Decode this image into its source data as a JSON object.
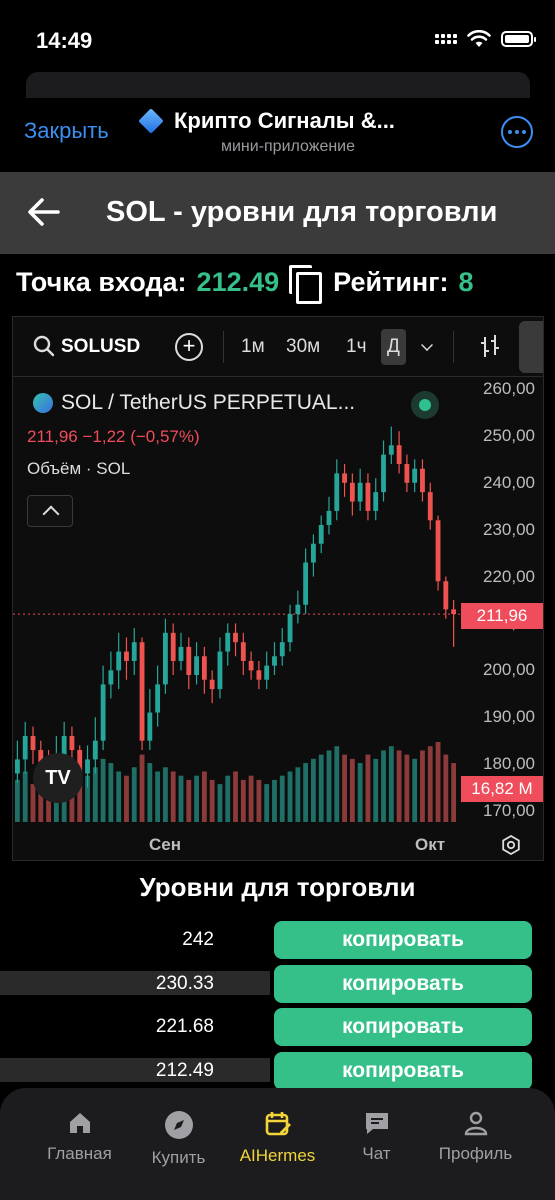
{
  "status": {
    "time": "14:49"
  },
  "mini_app": {
    "close_label": "Закрыть",
    "title": "Крипто Сигналы &...",
    "subtitle": "мини-приложение"
  },
  "page": {
    "title": "SOL - уровни для торговли"
  },
  "entry": {
    "entry_label": "Точка входа:",
    "entry_value": "212.49",
    "rating_label": "Рейтинг:",
    "rating_value": "8"
  },
  "chart": {
    "symbol": "SOLUSD",
    "intervals": [
      "1м",
      "30м",
      "1ч",
      "Д"
    ],
    "active_interval": "Д",
    "instrument": "SOL / TetherUS PERPETUAL...",
    "price_change": "211,96  −1,22 (−0,57%)",
    "volume_label": "Объём · SOL",
    "current_price_tag": "211,96",
    "volume_tag": "16,82 M",
    "colors": {
      "up": "#26a69a",
      "down": "#ef5350",
      "up_vol": "#1f6f66",
      "down_vol": "#8c3a3a"
    }
  },
  "chart_data": {
    "type": "candlestick",
    "y_ticks": [
      "260,00",
      "250,00",
      "240,00",
      "230,00",
      "220,00",
      "210,00",
      "200,00",
      "190,00",
      "180,00",
      "170,00"
    ],
    "ylim": [
      170,
      262
    ],
    "x_ticks": [
      "Сен",
      "Окт"
    ],
    "candles": [
      [
        178,
        181,
        185,
        176
      ],
      [
        181,
        186,
        189,
        178
      ],
      [
        186,
        183,
        188,
        180
      ],
      [
        183,
        180,
        185,
        176
      ],
      [
        180,
        178,
        183,
        174
      ],
      [
        178,
        182,
        186,
        175
      ],
      [
        182,
        186,
        189,
        179
      ],
      [
        186,
        183,
        188,
        180
      ],
      [
        183,
        178,
        184,
        176
      ],
      [
        178,
        181,
        184,
        175
      ],
      [
        181,
        185,
        190,
        178
      ],
      [
        185,
        197,
        201,
        183
      ],
      [
        197,
        200,
        204,
        194
      ],
      [
        200,
        204,
        208,
        196
      ],
      [
        204,
        202,
        207,
        198
      ],
      [
        202,
        206,
        209,
        199
      ],
      [
        206,
        185,
        207,
        183
      ],
      [
        185,
        191,
        196,
        183
      ],
      [
        191,
        197,
        201,
        188
      ],
      [
        197,
        208,
        211,
        195
      ],
      [
        208,
        202,
        210,
        199
      ],
      [
        202,
        205,
        208,
        200
      ],
      [
        205,
        199,
        207,
        196
      ],
      [
        199,
        203,
        206,
        197
      ],
      [
        203,
        198,
        205,
        195
      ],
      [
        198,
        196,
        200,
        193
      ],
      [
        196,
        204,
        207,
        194
      ],
      [
        204,
        208,
        210,
        201
      ],
      [
        208,
        206,
        210,
        203
      ],
      [
        206,
        202,
        208,
        199
      ],
      [
        202,
        200,
        204,
        198
      ],
      [
        200,
        198,
        202,
        196
      ],
      [
        198,
        201,
        204,
        196
      ],
      [
        201,
        203,
        206,
        199
      ],
      [
        203,
        206,
        209,
        201
      ],
      [
        206,
        212,
        214,
        204
      ],
      [
        212,
        214,
        217,
        210
      ],
      [
        214,
        223,
        226,
        212
      ],
      [
        223,
        227,
        229,
        220
      ],
      [
        227,
        231,
        233,
        225
      ],
      [
        231,
        234,
        237,
        229
      ],
      [
        234,
        242,
        245,
        232
      ],
      [
        242,
        240,
        244,
        237
      ],
      [
        240,
        236,
        242,
        233
      ],
      [
        236,
        240,
        243,
        234
      ],
      [
        240,
        234,
        242,
        232
      ],
      [
        234,
        238,
        241,
        232
      ],
      [
        238,
        246,
        249,
        236
      ],
      [
        246,
        248,
        252,
        244
      ],
      [
        248,
        244,
        251,
        242
      ],
      [
        244,
        240,
        246,
        238
      ],
      [
        240,
        243,
        245,
        238
      ],
      [
        243,
        238,
        245,
        236
      ],
      [
        238,
        232,
        240,
        230
      ],
      [
        232,
        219,
        233,
        217
      ],
      [
        219,
        213,
        220,
        211
      ],
      [
        213,
        212,
        215,
        205
      ]
    ],
    "volumes": [
      10,
      12,
      9,
      8,
      11,
      10,
      9,
      8,
      10,
      11,
      13,
      15,
      14,
      12,
      11,
      13,
      16,
      14,
      12,
      13,
      12,
      11,
      10,
      11,
      12,
      10,
      9,
      11,
      12,
      10,
      11,
      10,
      9,
      10,
      11,
      12,
      13,
      14,
      15,
      16,
      17,
      18,
      16,
      15,
      14,
      16,
      15,
      17,
      18,
      17,
      16,
      15,
      17,
      18,
      19,
      16,
      14
    ]
  },
  "levels": {
    "title": "Уровни для торговли",
    "copy_label": "копировать",
    "values": [
      "242",
      "230.33",
      "221.68",
      "212.49"
    ]
  },
  "tabs": [
    {
      "label": "Главная",
      "icon": "home-icon"
    },
    {
      "label": "Купить",
      "icon": "compass-icon"
    },
    {
      "label": "AIHermes",
      "icon": "calendar-edit-icon"
    },
    {
      "label": "Чат",
      "icon": "chat-icon"
    },
    {
      "label": "Профиль",
      "icon": "profile-icon"
    }
  ],
  "active_tab": "AIHermes"
}
